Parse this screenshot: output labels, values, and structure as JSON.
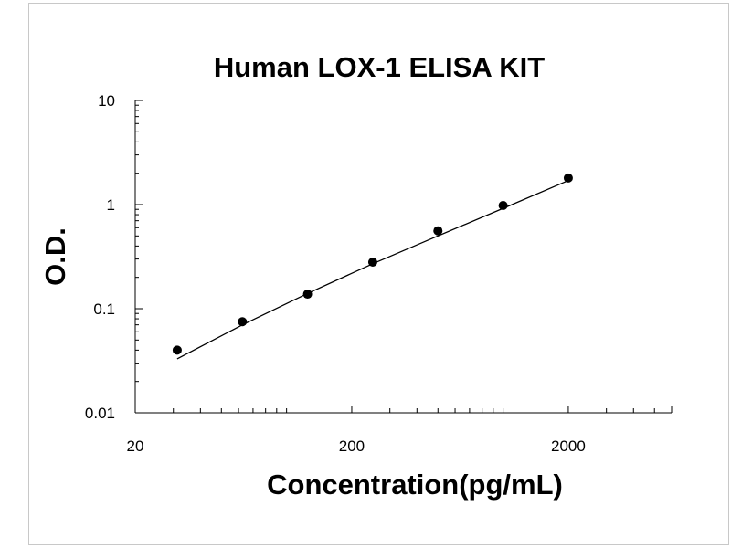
{
  "chart_data": {
    "type": "scatter",
    "title": "Human LOX-1 ELISA KIT",
    "xlabel": "Concentration(pg/mL)",
    "ylabel": "O.D.",
    "x_scale": "log",
    "y_scale": "log",
    "xlim": [
      20,
      6000
    ],
    "ylim": [
      0.01,
      10
    ],
    "x_ticks": [
      {
        "value": 20,
        "label": "20"
      },
      {
        "value": 200,
        "label": "200"
      },
      {
        "value": 2000,
        "label": "2000"
      }
    ],
    "y_ticks": [
      {
        "value": 0.01,
        "label": "0.01"
      },
      {
        "value": 0.1,
        "label": "0.1"
      },
      {
        "value": 1,
        "label": "1"
      },
      {
        "value": 10,
        "label": "10"
      }
    ],
    "grid": false,
    "legend": "none",
    "series": [
      {
        "points": [
          {
            "x": 31.25,
            "y": 0.04
          },
          {
            "x": 62.5,
            "y": 0.075
          },
          {
            "x": 125,
            "y": 0.138
          },
          {
            "x": 250,
            "y": 0.28
          },
          {
            "x": 500,
            "y": 0.56
          },
          {
            "x": 1000,
            "y": 0.98
          },
          {
            "x": 2000,
            "y": 1.8
          }
        ]
      }
    ],
    "fit_curve": {
      "x": [
        31.25,
        62.5,
        125,
        250,
        500,
        1000,
        2000
      ],
      "y": [
        0.033,
        0.07,
        0.14,
        0.27,
        0.5,
        0.92,
        1.7
      ]
    }
  }
}
